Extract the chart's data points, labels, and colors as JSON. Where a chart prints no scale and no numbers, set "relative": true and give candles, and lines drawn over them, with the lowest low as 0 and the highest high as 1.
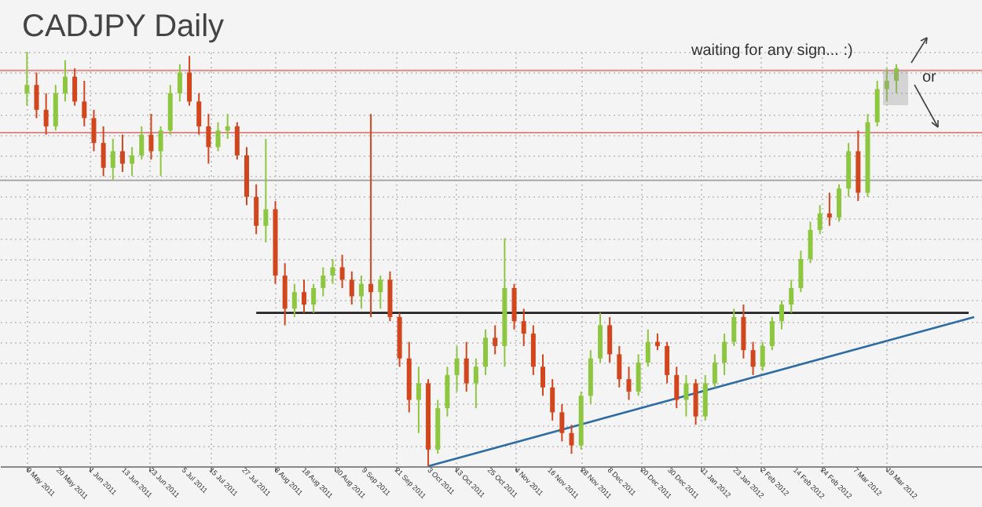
{
  "chart_data": {
    "type": "candlestick",
    "title": "CADJPY Daily",
    "relative": true,
    "grid": true,
    "annotations": [
      "waiting for any sign... :)",
      "or"
    ],
    "x": [
      "2011-05-09T00:00",
      "2011-05-12T12:00",
      "2011-05-16T00:00",
      "2011-05-19T12:00",
      "2011-05-23T00:00",
      "2011-05-26T12:00",
      "2011-05-30T00:00",
      "2011-06-02T12:00",
      "2011-06-06T00:00",
      "2011-06-09T12:00",
      "2011-06-13T00:00",
      "2011-06-16T12:00",
      "2011-06-20T00:00",
      "2011-06-23T12:00",
      "2011-06-27T00:00",
      "2011-06-30T12:00",
      "2011-07-04T00:00",
      "2011-07-07T12:00",
      "2011-07-11T00:00",
      "2011-07-14T12:00",
      "2011-07-18T00:00",
      "2011-07-21T12:00",
      "2011-07-25T00:00",
      "2011-07-28T12:00",
      "2011-08-01T00:00",
      "2011-08-04T12:00",
      "2011-08-08T00:00",
      "2011-08-11T12:00",
      "2011-08-15T00:00",
      "2011-08-18T12:00",
      "2011-08-22T00:00",
      "2011-08-25T12:00",
      "2011-08-29T00:00",
      "2011-09-01T12:00",
      "2011-09-05T00:00",
      "2011-09-08T12:00",
      "2011-09-12T00:00",
      "2011-09-15T12:00",
      "2011-09-19T00:00",
      "2011-09-22T12:00",
      "2011-09-26T00:00",
      "2011-09-29T12:00",
      "2011-10-03T00:00",
      "2011-10-06T12:00",
      "2011-10-10T00:00",
      "2011-10-13T12:00",
      "2011-10-17T00:00",
      "2011-10-20T12:00",
      "2011-10-24T00:00",
      "2011-10-27T12:00",
      "2011-10-31T00:00",
      "2011-11-03T12:00",
      "2011-11-07T00:00",
      "2011-11-10T12:00",
      "2011-11-14T00:00",
      "2011-11-17T12:00",
      "2011-11-21T00:00",
      "2011-11-24T12:00",
      "2011-11-28T00:00",
      "2011-12-01T12:00",
      "2011-12-05T00:00",
      "2011-12-08T12:00",
      "2011-12-12T00:00",
      "2011-12-15T12:00",
      "2011-12-19T00:00",
      "2011-12-22T12:00",
      "2011-12-26T00:00",
      "2011-12-29T12:00",
      "2012-01-02T00:00",
      "2012-01-05T12:00",
      "2012-01-09T00:00",
      "2012-01-12T12:00",
      "2012-01-16T00:00",
      "2012-01-19T12:00",
      "2012-01-23T00:00",
      "2012-01-26T12:00",
      "2012-01-30T00:00",
      "2012-02-02T12:00",
      "2012-02-06T00:00",
      "2012-02-09T12:00",
      "2012-02-13T00:00",
      "2012-02-16T12:00",
      "2012-02-20T00:00",
      "2012-02-23T12:00",
      "2012-02-27T00:00",
      "2012-03-01T12:00",
      "2012-03-05T00:00",
      "2012-03-08T12:00",
      "2012-03-12T00:00",
      "2012-03-15T12:00",
      "2012-03-19T00:00",
      "2012-03-22T12:00"
    ],
    "ohlc": [
      [
        0.9,
        1.0,
        0.87,
        0.92
      ],
      [
        0.92,
        0.95,
        0.84,
        0.86
      ],
      [
        0.86,
        0.9,
        0.8,
        0.82
      ],
      [
        0.82,
        0.92,
        0.81,
        0.9
      ],
      [
        0.9,
        0.98,
        0.88,
        0.94
      ],
      [
        0.94,
        0.96,
        0.87,
        0.88
      ],
      [
        0.88,
        0.93,
        0.82,
        0.84
      ],
      [
        0.84,
        0.86,
        0.76,
        0.78
      ],
      [
        0.78,
        0.82,
        0.7,
        0.72
      ],
      [
        0.72,
        0.79,
        0.69,
        0.76
      ],
      [
        0.76,
        0.8,
        0.71,
        0.73
      ],
      [
        0.73,
        0.77,
        0.7,
        0.75
      ],
      [
        0.75,
        0.82,
        0.74,
        0.8
      ],
      [
        0.8,
        0.85,
        0.74,
        0.76
      ],
      [
        0.76,
        0.82,
        0.7,
        0.81
      ],
      [
        0.81,
        0.92,
        0.8,
        0.9
      ],
      [
        0.9,
        0.97,
        0.88,
        0.95
      ],
      [
        0.95,
        0.99,
        0.87,
        0.88
      ],
      [
        0.88,
        0.9,
        0.8,
        0.82
      ],
      [
        0.82,
        0.85,
        0.73,
        0.77
      ],
      [
        0.77,
        0.83,
        0.76,
        0.81
      ],
      [
        0.81,
        0.85,
        0.79,
        0.82
      ],
      [
        0.82,
        0.83,
        0.74,
        0.75
      ],
      [
        0.75,
        0.77,
        0.63,
        0.65
      ],
      [
        0.65,
        0.68,
        0.56,
        0.58
      ],
      [
        0.58,
        0.79,
        0.54,
        0.62
      ],
      [
        0.62,
        0.64,
        0.44,
        0.46
      ],
      [
        0.46,
        0.49,
        0.34,
        0.38
      ],
      [
        0.38,
        0.44,
        0.36,
        0.42
      ],
      [
        0.42,
        0.45,
        0.37,
        0.39
      ],
      [
        0.39,
        0.44,
        0.37,
        0.43
      ],
      [
        0.43,
        0.48,
        0.41,
        0.46
      ],
      [
        0.46,
        0.5,
        0.44,
        0.48
      ],
      [
        0.48,
        0.51,
        0.43,
        0.45
      ],
      [
        0.45,
        0.47,
        0.39,
        0.41
      ],
      [
        0.41,
        0.46,
        0.38,
        0.44
      ],
      [
        0.44,
        0.85,
        0.36,
        0.42
      ],
      [
        0.42,
        0.46,
        0.38,
        0.45
      ],
      [
        0.45,
        0.47,
        0.35,
        0.36
      ],
      [
        0.36,
        0.37,
        0.24,
        0.26
      ],
      [
        0.26,
        0.3,
        0.13,
        0.16
      ],
      [
        0.16,
        0.24,
        0.08,
        0.2
      ],
      [
        0.2,
        0.21,
        0.0,
        0.04
      ],
      [
        0.04,
        0.16,
        0.03,
        0.14
      ],
      [
        0.14,
        0.24,
        0.12,
        0.22
      ],
      [
        0.22,
        0.29,
        0.18,
        0.26
      ],
      [
        0.26,
        0.3,
        0.18,
        0.2
      ],
      [
        0.2,
        0.26,
        0.14,
        0.24
      ],
      [
        0.24,
        0.33,
        0.22,
        0.31
      ],
      [
        0.31,
        0.34,
        0.27,
        0.29
      ],
      [
        0.29,
        0.55,
        0.24,
        0.43
      ],
      [
        0.43,
        0.44,
        0.33,
        0.35
      ],
      [
        0.35,
        0.38,
        0.29,
        0.32
      ],
      [
        0.32,
        0.34,
        0.22,
        0.24
      ],
      [
        0.24,
        0.27,
        0.17,
        0.19
      ],
      [
        0.19,
        0.21,
        0.11,
        0.13
      ],
      [
        0.13,
        0.15,
        0.06,
        0.08
      ],
      [
        0.08,
        0.1,
        0.03,
        0.05
      ],
      [
        0.05,
        0.18,
        0.04,
        0.17
      ],
      [
        0.17,
        0.28,
        0.15,
        0.26
      ],
      [
        0.26,
        0.37,
        0.25,
        0.34
      ],
      [
        0.34,
        0.36,
        0.25,
        0.27
      ],
      [
        0.27,
        0.29,
        0.19,
        0.21
      ],
      [
        0.21,
        0.24,
        0.16,
        0.18
      ],
      [
        0.18,
        0.27,
        0.17,
        0.25
      ],
      [
        0.25,
        0.33,
        0.24,
        0.3
      ],
      [
        0.3,
        0.32,
        0.28,
        0.29
      ],
      [
        0.29,
        0.3,
        0.2,
        0.22
      ],
      [
        0.22,
        0.24,
        0.14,
        0.16
      ],
      [
        0.16,
        0.22,
        0.12,
        0.2
      ],
      [
        0.2,
        0.21,
        0.1,
        0.12
      ],
      [
        0.12,
        0.22,
        0.11,
        0.2
      ],
      [
        0.2,
        0.27,
        0.19,
        0.25
      ],
      [
        0.25,
        0.32,
        0.22,
        0.3
      ],
      [
        0.3,
        0.38,
        0.29,
        0.36
      ],
      [
        0.36,
        0.39,
        0.26,
        0.28
      ],
      [
        0.28,
        0.3,
        0.22,
        0.24
      ],
      [
        0.24,
        0.3,
        0.23,
        0.29
      ],
      [
        0.29,
        0.36,
        0.28,
        0.35
      ],
      [
        0.35,
        0.4,
        0.33,
        0.39
      ],
      [
        0.39,
        0.45,
        0.37,
        0.43
      ],
      [
        0.43,
        0.52,
        0.42,
        0.5
      ],
      [
        0.5,
        0.59,
        0.49,
        0.57
      ],
      [
        0.57,
        0.63,
        0.56,
        0.61
      ],
      [
        0.61,
        0.66,
        0.58,
        0.6
      ],
      [
        0.6,
        0.68,
        0.59,
        0.67
      ],
      [
        0.67,
        0.78,
        0.65,
        0.76
      ],
      [
        0.76,
        0.81,
        0.64,
        0.66
      ],
      [
        0.66,
        0.85,
        0.65,
        0.83
      ],
      [
        0.83,
        0.93,
        0.82,
        0.91
      ],
      [
        0.91,
        0.96,
        0.88,
        0.93
      ],
      [
        0.93,
        0.97,
        0.9,
        0.96
      ]
    ],
    "colors": [
      "#8dc63f",
      "#d2461e",
      "#d2461e",
      "#8dc63f",
      "#8dc63f",
      "#d2461e",
      "#d2461e",
      "#d2461e",
      "#d2461e",
      "#8dc63f",
      "#d2461e",
      "#8dc63f",
      "#8dc63f",
      "#d2461e",
      "#8dc63f",
      "#8dc63f",
      "#8dc63f",
      "#d2461e",
      "#d2461e",
      "#d2461e",
      "#8dc63f",
      "#8dc63f",
      "#d2461e",
      "#d2461e",
      "#d2461e",
      "#8dc63f",
      "#d2461e",
      "#d2461e",
      "#8dc63f",
      "#d2461e",
      "#8dc63f",
      "#8dc63f",
      "#8dc63f",
      "#d2461e",
      "#d2461e",
      "#8dc63f",
      "#d2461e",
      "#8dc63f",
      "#d2461e",
      "#d2461e",
      "#d2461e",
      "#8dc63f",
      "#d2461e",
      "#8dc63f",
      "#8dc63f",
      "#8dc63f",
      "#d2461e",
      "#8dc63f",
      "#8dc63f",
      "#d2461e",
      "#8dc63f",
      "#d2461e",
      "#d2461e",
      "#d2461e",
      "#d2461e",
      "#d2461e",
      "#d2461e",
      "#d2461e",
      "#8dc63f",
      "#8dc63f",
      "#8dc63f",
      "#d2461e",
      "#d2461e",
      "#d2461e",
      "#8dc63f",
      "#8dc63f",
      "#d2461e",
      "#d2461e",
      "#d2461e",
      "#8dc63f",
      "#d2461e",
      "#8dc63f",
      "#8dc63f",
      "#8dc63f",
      "#8dc63f",
      "#d2461e",
      "#d2461e",
      "#8dc63f",
      "#8dc63f",
      "#8dc63f",
      "#8dc63f",
      "#8dc63f",
      "#8dc63f",
      "#8dc63f",
      "#d2461e",
      "#8dc63f",
      "#8dc63f",
      "#d2461e",
      "#8dc63f",
      "#8dc63f",
      "#8dc63f",
      "#8dc63f"
    ],
    "series": [
      {
        "type": "line",
        "x": [
          "2011-08-01",
          "2012-04-18"
        ],
        "values": [
          0.37,
          0.37
        ],
        "color": "#222222"
      },
      {
        "type": "line",
        "x": [
          "2011-10-03",
          "2012-04-20"
        ],
        "values": [
          0.0,
          0.36
        ],
        "color": "#2e6da4"
      }
    ],
    "ref_lines": [
      {
        "axis": "y",
        "value": 0.955,
        "color": "#e08a8a"
      },
      {
        "axis": "y",
        "value": 0.805,
        "color": "#e08a8a"
      },
      {
        "axis": "y",
        "value": 0.69,
        "color": "#a8a8a8"
      }
    ],
    "xlim": [
      "2011-05-02",
      "2012-04-20"
    ],
    "xticks": [
      {
        "value": "2011-05-09",
        "label": "9 May 2011"
      },
      {
        "value": "2011-05-20",
        "label": "20 May 2011"
      },
      {
        "value": "2011-06-01",
        "label": "1 Jun 2011"
      },
      {
        "value": "2011-06-13",
        "label": "13 Jun 2011"
      },
      {
        "value": "2011-06-23",
        "label": "23 Jun 2011"
      },
      {
        "value": "2011-07-05",
        "label": "5 Jul 2011"
      },
      {
        "value": "2011-07-15",
        "label": "15 Jul 2011"
      },
      {
        "value": "2011-07-27",
        "label": "27 Jul 2011"
      },
      {
        "value": "2011-08-08",
        "label": "8 Aug 2011"
      },
      {
        "value": "2011-08-18",
        "label": "18 Aug 2011"
      },
      {
        "value": "2011-08-30",
        "label": "30 Aug 2011"
      },
      {
        "value": "2011-09-09",
        "label": "9 Sep 2011"
      },
      {
        "value": "2011-09-21",
        "label": "21 Sep 2011"
      },
      {
        "value": "2011-10-03",
        "label": "3 Oct 2011"
      },
      {
        "value": "2011-10-13",
        "label": "13 Oct 2011"
      },
      {
        "value": "2011-10-25",
        "label": "25 Oct 2011"
      },
      {
        "value": "2011-11-04",
        "label": "4 Nov 2011"
      },
      {
        "value": "2011-11-16",
        "label": "16 Nov 2011"
      },
      {
        "value": "2011-11-28",
        "label": "28 Nov 2011"
      },
      {
        "value": "2011-12-08",
        "label": "8 Dec 2011"
      },
      {
        "value": "2011-12-20",
        "label": "20 Dec 2011"
      },
      {
        "value": "2011-12-30",
        "label": "30 Dec 2011"
      },
      {
        "value": "2012-01-11",
        "label": "11 Jan 2012"
      },
      {
        "value": "2012-01-23",
        "label": "23 Jan 2012"
      },
      {
        "value": "2012-02-02",
        "label": "2 Feb 2012"
      },
      {
        "value": "2012-02-14",
        "label": "14 Feb 2012"
      },
      {
        "value": "2012-02-24",
        "label": "24 Feb 2012"
      },
      {
        "value": "2012-03-07",
        "label": "7 Mar 2012"
      },
      {
        "value": "2012-03-19",
        "label": "19 Mar 2012"
      }
    ]
  }
}
